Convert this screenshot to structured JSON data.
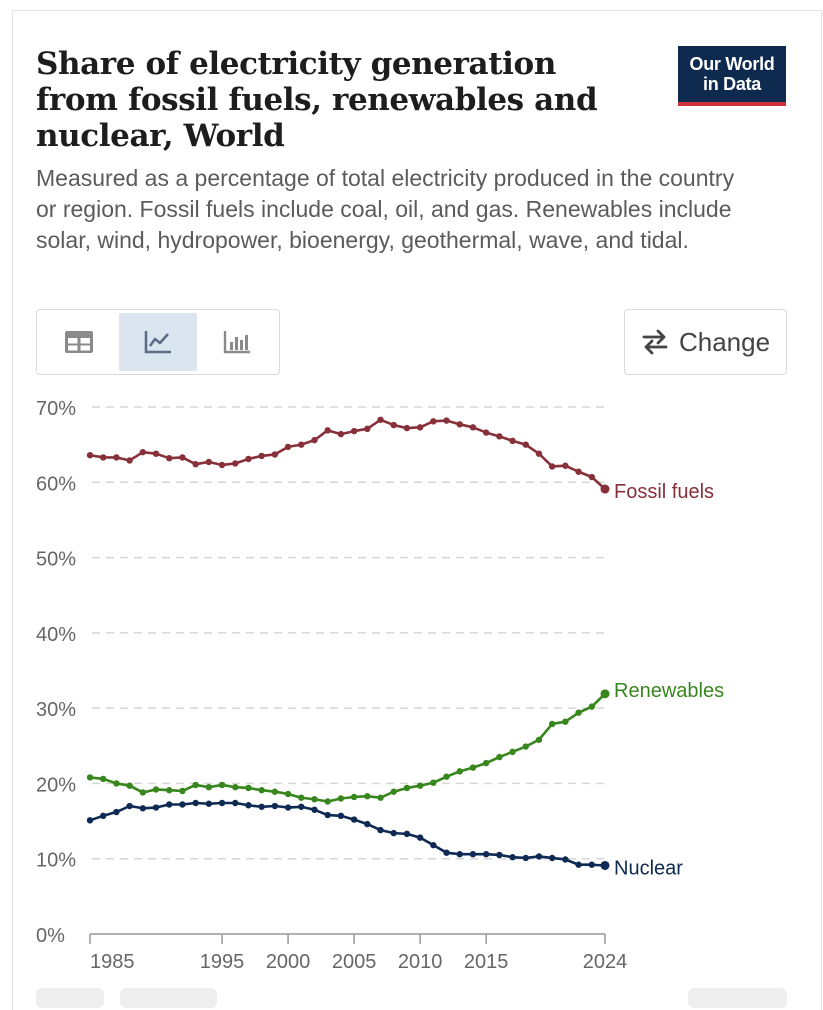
{
  "header": {
    "title": "Share of electricity generation from fossil fuels, renewables and nuclear, World",
    "subtitle": "Measured as a percentage of total electricity produced in the country or region. Fossil fuels include coal, oil, and gas. Renewables include solar, wind, hydropower, bioenergy, geothermal, wave, and tidal.",
    "logo_line1": "Our World",
    "logo_line2": "in Data"
  },
  "controls": {
    "tabs": [
      {
        "name": "table",
        "icon": "table-icon",
        "active": false
      },
      {
        "name": "chart",
        "icon": "line-chart-icon",
        "active": true
      },
      {
        "name": "bar",
        "icon": "bar-chart-icon",
        "active": false
      }
    ],
    "change_label": "Change",
    "change_icon": "swap-arrows-icon"
  },
  "chart_data": {
    "type": "line",
    "x": [
      1985,
      1986,
      1987,
      1988,
      1989,
      1990,
      1991,
      1992,
      1993,
      1994,
      1995,
      1996,
      1997,
      1998,
      1999,
      2000,
      2001,
      2002,
      2003,
      2004,
      2005,
      2006,
      2007,
      2008,
      2009,
      2010,
      2011,
      2012,
      2013,
      2014,
      2015,
      2016,
      2017,
      2018,
      2019,
      2020,
      2021,
      2022,
      2023,
      2024
    ],
    "series": [
      {
        "name": "Fossil fuels",
        "color": "#883039",
        "values": [
          63.6,
          63.3,
          63.3,
          62.9,
          64.0,
          63.8,
          63.2,
          63.3,
          62.4,
          62.7,
          62.3,
          62.5,
          63.1,
          63.5,
          63.7,
          64.7,
          65.0,
          65.6,
          66.9,
          66.4,
          66.8,
          67.1,
          68.3,
          67.6,
          67.2,
          67.3,
          68.1,
          68.2,
          67.7,
          67.3,
          66.6,
          66.1,
          65.5,
          65.0,
          63.8,
          62.1,
          62.2,
          61.4,
          60.7,
          59.1
        ]
      },
      {
        "name": "Renewables",
        "color": "#38861e",
        "values": [
          20.8,
          20.6,
          20.0,
          19.7,
          18.8,
          19.2,
          19.1,
          19.0,
          19.8,
          19.5,
          19.8,
          19.5,
          19.4,
          19.1,
          18.9,
          18.6,
          18.1,
          17.9,
          17.6,
          18.0,
          18.2,
          18.3,
          18.1,
          18.9,
          19.4,
          19.7,
          20.1,
          20.9,
          21.6,
          22.1,
          22.7,
          23.5,
          24.2,
          24.9,
          25.8,
          27.9,
          28.2,
          29.4,
          30.2,
          31.9
        ]
      },
      {
        "name": "Nuclear",
        "color": "#0e2a53",
        "values": [
          15.1,
          15.7,
          16.2,
          17.0,
          16.7,
          16.8,
          17.2,
          17.2,
          17.4,
          17.3,
          17.4,
          17.4,
          17.1,
          16.9,
          17.0,
          16.8,
          16.9,
          16.5,
          15.8,
          15.7,
          15.2,
          14.6,
          13.8,
          13.4,
          13.3,
          12.8,
          11.8,
          10.8,
          10.6,
          10.6,
          10.6,
          10.5,
          10.2,
          10.1,
          10.3,
          10.1,
          9.9,
          9.2,
          9.2,
          9.1
        ]
      }
    ],
    "ylim": [
      0,
      70
    ],
    "y_ticks": [
      "0%",
      "10%",
      "20%",
      "30%",
      "40%",
      "50%",
      "60%",
      "70%"
    ],
    "x_ticks": [
      1985,
      1995,
      2000,
      2005,
      2010,
      2015,
      2024
    ],
    "grid": true,
    "legend": "line-end labels"
  }
}
